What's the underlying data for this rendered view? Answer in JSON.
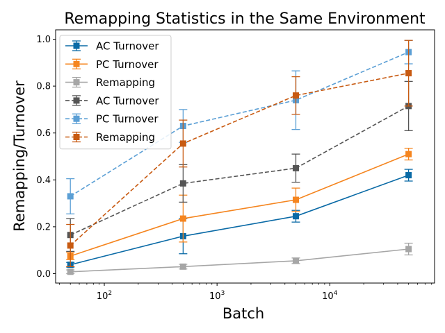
{
  "chart_data": {
    "type": "line",
    "title": "Remapping Statistics in the Same Environment",
    "xlabel": "Batch",
    "ylabel": "Remapping/Turnover",
    "xscale": "log",
    "xlim": [
      37,
      85000
    ],
    "ylim": [
      -0.04,
      1.04
    ],
    "x_ticks": [
      {
        "value": 100,
        "base": "10",
        "exp": "2"
      },
      {
        "value": 1000,
        "base": "10",
        "exp": "3"
      },
      {
        "value": 10000,
        "base": "10",
        "exp": "4"
      }
    ],
    "y_ticks": [
      {
        "value": 0.0,
        "label": "0.0"
      },
      {
        "value": 0.2,
        "label": "0.2"
      },
      {
        "value": 0.4,
        "label": "0.4"
      },
      {
        "value": 0.6,
        "label": "0.6"
      },
      {
        "value": 0.8,
        "label": "0.8"
      },
      {
        "value": 1.0,
        "label": "1.0"
      }
    ],
    "grid": false,
    "legend_position": "top-left",
    "series": [
      {
        "name": "AC Turnover",
        "color": "#0a6aa6",
        "dash": "solid",
        "x": [
          50,
          500,
          5000,
          50000
        ],
        "y": [
          0.038,
          0.16,
          0.245,
          0.42
        ],
        "err": [
          0.01,
          0.075,
          0.025,
          0.025
        ]
      },
      {
        "name": "PC Turnover",
        "color": "#f5851f",
        "dash": "solid",
        "x": [
          50,
          500,
          5000,
          50000
        ],
        "y": [
          0.075,
          0.235,
          0.315,
          0.51
        ],
        "err": [
          0.015,
          0.1,
          0.05,
          0.025
        ]
      },
      {
        "name": "Remapping",
        "color": "#a6a6a6",
        "dash": "solid",
        "x": [
          50,
          500,
          5000,
          50000
        ],
        "y": [
          0.008,
          0.03,
          0.055,
          0.105
        ],
        "err": [
          0.008,
          0.01,
          0.012,
          0.025
        ]
      },
      {
        "name": "AC Turnover",
        "color": "#555555",
        "dash": "dashed",
        "x": [
          50,
          500,
          5000,
          50000
        ],
        "y": [
          0.165,
          0.385,
          0.45,
          0.715
        ],
        "err": [
          0.07,
          0.08,
          0.06,
          0.105
        ]
      },
      {
        "name": "PC Turnover",
        "color": "#5b9fd5",
        "dash": "dashed",
        "x": [
          50,
          500,
          5000,
          50000
        ],
        "y": [
          0.33,
          0.63,
          0.74,
          0.945
        ],
        "err": [
          0.075,
          0.07,
          0.125,
          0.05
        ]
      },
      {
        "name": "Remapping",
        "color": "#c85a11",
        "dash": "dashed",
        "x": [
          50,
          500,
          5000,
          50000
        ],
        "y": [
          0.12,
          0.555,
          0.76,
          0.855
        ],
        "err": [
          0.09,
          0.1,
          0.08,
          0.14
        ]
      }
    ]
  }
}
